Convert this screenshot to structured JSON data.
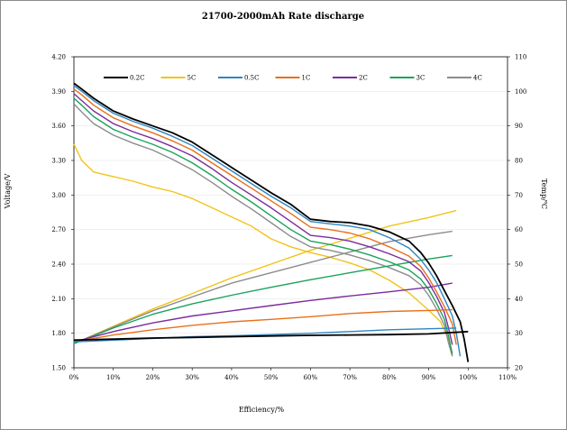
{
  "chart_data": {
    "type": "line",
    "title": "21700-2000mAh Rate discharge",
    "xlabel": "Efficiency/%",
    "ylabel": "Voltage/V",
    "y2label": "Temp/℃",
    "xlim": [
      0,
      110
    ],
    "ylim": [
      1.5,
      4.2
    ],
    "y2lim": [
      20,
      110
    ],
    "xticks": [
      "0%",
      "10%",
      "20%",
      "30%",
      "40%",
      "50%",
      "60%",
      "70%",
      "80%",
      "90%",
      "100%",
      "110%"
    ],
    "yticks": [
      "1.50",
      "1.80",
      "2.10",
      "2.40",
      "2.70",
      "3.00",
      "3.30",
      "3.60",
      "3.90",
      "4.20"
    ],
    "y2ticks": [
      "20",
      "30",
      "40",
      "50",
      "60",
      "70",
      "80",
      "90",
      "100",
      "110"
    ],
    "legend_position": "top",
    "series": [
      {
        "name": "0.2C",
        "color": "#000000",
        "voltage": [
          [
            0,
            3.97
          ],
          [
            2,
            3.92
          ],
          [
            5,
            3.84
          ],
          [
            10,
            3.73
          ],
          [
            15,
            3.66
          ],
          [
            20,
            3.6
          ],
          [
            25,
            3.54
          ],
          [
            30,
            3.46
          ],
          [
            35,
            3.35
          ],
          [
            40,
            3.24
          ],
          [
            45,
            3.13
          ],
          [
            50,
            3.02
          ],
          [
            55,
            2.92
          ],
          [
            60,
            2.79
          ],
          [
            65,
            2.77
          ],
          [
            70,
            2.76
          ],
          [
            75,
            2.73
          ],
          [
            80,
            2.68
          ],
          [
            85,
            2.6
          ],
          [
            88,
            2.5
          ],
          [
            90,
            2.41
          ],
          [
            92,
            2.3
          ],
          [
            94,
            2.17
          ],
          [
            96,
            2.04
          ],
          [
            98,
            1.9
          ],
          [
            99,
            1.75
          ],
          [
            100,
            1.55
          ]
        ],
        "temp": [
          [
            0,
            28
          ],
          [
            10,
            28.3
          ],
          [
            20,
            28.6
          ],
          [
            30,
            28.8
          ],
          [
            40,
            29
          ],
          [
            50,
            29.2
          ],
          [
            60,
            29.4
          ],
          [
            70,
            29.5
          ],
          [
            80,
            29.6
          ],
          [
            90,
            29.8
          ],
          [
            100,
            30.5
          ]
        ]
      },
      {
        "name": "5C",
        "color": "#f2c318",
        "voltage": [
          [
            0,
            3.44
          ],
          [
            2,
            3.3
          ],
          [
            5,
            3.2
          ],
          [
            10,
            3.16
          ],
          [
            15,
            3.12
          ],
          [
            20,
            3.07
          ],
          [
            25,
            3.03
          ],
          [
            30,
            2.97
          ],
          [
            35,
            2.89
          ],
          [
            40,
            2.81
          ],
          [
            45,
            2.73
          ],
          [
            50,
            2.62
          ],
          [
            55,
            2.55
          ],
          [
            60,
            2.5
          ],
          [
            65,
            2.46
          ],
          [
            70,
            2.41
          ],
          [
            75,
            2.35
          ],
          [
            80,
            2.26
          ],
          [
            85,
            2.15
          ],
          [
            90,
            2.0
          ],
          [
            93,
            1.9
          ],
          [
            95,
            1.75
          ],
          [
            96,
            1.6
          ]
        ],
        "temp": [
          [
            0,
            27
          ],
          [
            10,
            32
          ],
          [
            20,
            37
          ],
          [
            30,
            41.5
          ],
          [
            40,
            46
          ],
          [
            50,
            50
          ],
          [
            60,
            54
          ],
          [
            70,
            57.5
          ],
          [
            80,
            61
          ],
          [
            90,
            63.5
          ],
          [
            97,
            65.5
          ]
        ]
      },
      {
        "name": "0.5C",
        "color": "#2e86c1",
        "voltage": [
          [
            0,
            3.95
          ],
          [
            2,
            3.9
          ],
          [
            5,
            3.82
          ],
          [
            10,
            3.71
          ],
          [
            15,
            3.64
          ],
          [
            20,
            3.58
          ],
          [
            25,
            3.51
          ],
          [
            30,
            3.43
          ],
          [
            35,
            3.32
          ],
          [
            40,
            3.21
          ],
          [
            45,
            3.1
          ],
          [
            50,
            2.99
          ],
          [
            55,
            2.89
          ],
          [
            60,
            2.77
          ],
          [
            65,
            2.75
          ],
          [
            70,
            2.73
          ],
          [
            75,
            2.7
          ],
          [
            80,
            2.63
          ],
          [
            85,
            2.54
          ],
          [
            88,
            2.44
          ],
          [
            90,
            2.35
          ],
          [
            92,
            2.24
          ],
          [
            94,
            2.1
          ],
          [
            96,
            1.95
          ],
          [
            97,
            1.8
          ],
          [
            98,
            1.6
          ]
        ],
        "temp": [
          [
            0,
            27.5
          ],
          [
            10,
            28
          ],
          [
            20,
            28.5
          ],
          [
            30,
            29
          ],
          [
            40,
            29.3
          ],
          [
            50,
            29.6
          ],
          [
            60,
            30
          ],
          [
            70,
            30.5
          ],
          [
            80,
            31
          ],
          [
            90,
            31.3
          ],
          [
            97,
            31.5
          ]
        ]
      },
      {
        "name": "1C",
        "color": "#e8701a",
        "voltage": [
          [
            0,
            3.92
          ],
          [
            2,
            3.87
          ],
          [
            5,
            3.78
          ],
          [
            10,
            3.67
          ],
          [
            15,
            3.6
          ],
          [
            20,
            3.54
          ],
          [
            25,
            3.47
          ],
          [
            30,
            3.39
          ],
          [
            35,
            3.28
          ],
          [
            40,
            3.17
          ],
          [
            45,
            3.06
          ],
          [
            50,
            2.95
          ],
          [
            55,
            2.84
          ],
          [
            60,
            2.72
          ],
          [
            65,
            2.7
          ],
          [
            70,
            2.67
          ],
          [
            75,
            2.62
          ],
          [
            80,
            2.55
          ],
          [
            85,
            2.47
          ],
          [
            88,
            2.38
          ],
          [
            90,
            2.28
          ],
          [
            92,
            2.16
          ],
          [
            94,
            2.03
          ],
          [
            96,
            1.88
          ],
          [
            97,
            1.7
          ]
        ],
        "temp": [
          [
            0,
            27.5
          ],
          [
            10,
            29.5
          ],
          [
            20,
            31
          ],
          [
            30,
            32.3
          ],
          [
            40,
            33.3
          ],
          [
            50,
            34
          ],
          [
            60,
            34.8
          ],
          [
            70,
            35.7
          ],
          [
            80,
            36.3
          ],
          [
            90,
            36.6
          ],
          [
            96,
            36.8
          ]
        ]
      },
      {
        "name": "2C",
        "color": "#7b2c9e",
        "voltage": [
          [
            0,
            3.88
          ],
          [
            2,
            3.82
          ],
          [
            5,
            3.73
          ],
          [
            10,
            3.62
          ],
          [
            15,
            3.55
          ],
          [
            20,
            3.49
          ],
          [
            25,
            3.42
          ],
          [
            30,
            3.34
          ],
          [
            35,
            3.23
          ],
          [
            40,
            3.11
          ],
          [
            45,
            3.0
          ],
          [
            50,
            2.89
          ],
          [
            55,
            2.77
          ],
          [
            60,
            2.65
          ],
          [
            65,
            2.63
          ],
          [
            70,
            2.6
          ],
          [
            75,
            2.55
          ],
          [
            80,
            2.49
          ],
          [
            85,
            2.42
          ],
          [
            88,
            2.34
          ],
          [
            90,
            2.24
          ],
          [
            92,
            2.12
          ],
          [
            94,
            1.98
          ],
          [
            95,
            1.85
          ],
          [
            96,
            1.7
          ]
        ],
        "temp": [
          [
            0,
            27.5
          ],
          [
            10,
            30.5
          ],
          [
            20,
            33
          ],
          [
            30,
            35
          ],
          [
            40,
            36.5
          ],
          [
            50,
            38
          ],
          [
            60,
            39.5
          ],
          [
            70,
            40.8
          ],
          [
            80,
            42
          ],
          [
            90,
            43.3
          ],
          [
            96,
            44.5
          ]
        ]
      },
      {
        "name": "3C",
        "color": "#1aa35a",
        "voltage": [
          [
            0,
            3.84
          ],
          [
            2,
            3.78
          ],
          [
            5,
            3.68
          ],
          [
            10,
            3.57
          ],
          [
            15,
            3.5
          ],
          [
            20,
            3.44
          ],
          [
            25,
            3.37
          ],
          [
            30,
            3.28
          ],
          [
            35,
            3.17
          ],
          [
            40,
            3.05
          ],
          [
            45,
            2.94
          ],
          [
            50,
            2.82
          ],
          [
            55,
            2.7
          ],
          [
            60,
            2.6
          ],
          [
            65,
            2.57
          ],
          [
            70,
            2.53
          ],
          [
            75,
            2.48
          ],
          [
            80,
            2.42
          ],
          [
            85,
            2.35
          ],
          [
            88,
            2.27
          ],
          [
            90,
            2.18
          ],
          [
            92,
            2.06
          ],
          [
            94,
            1.92
          ],
          [
            95,
            1.78
          ],
          [
            96,
            1.62
          ]
        ],
        "temp": [
          [
            0,
            27
          ],
          [
            10,
            31.5
          ],
          [
            20,
            35.5
          ],
          [
            30,
            38.5
          ],
          [
            40,
            41
          ],
          [
            50,
            43.3
          ],
          [
            60,
            45.5
          ],
          [
            70,
            47.5
          ],
          [
            80,
            49.5
          ],
          [
            90,
            51.5
          ],
          [
            96,
            52.5
          ]
        ]
      },
      {
        "name": "4C",
        "color": "#8c8c8c",
        "voltage": [
          [
            0,
            3.79
          ],
          [
            2,
            3.72
          ],
          [
            5,
            3.62
          ],
          [
            10,
            3.52
          ],
          [
            15,
            3.45
          ],
          [
            20,
            3.39
          ],
          [
            25,
            3.31
          ],
          [
            30,
            3.22
          ],
          [
            35,
            3.11
          ],
          [
            40,
            2.99
          ],
          [
            45,
            2.88
          ],
          [
            50,
            2.76
          ],
          [
            55,
            2.64
          ],
          [
            60,
            2.55
          ],
          [
            65,
            2.52
          ],
          [
            70,
            2.48
          ],
          [
            75,
            2.43
          ],
          [
            80,
            2.37
          ],
          [
            85,
            2.3
          ],
          [
            88,
            2.22
          ],
          [
            90,
            2.13
          ],
          [
            92,
            2.01
          ],
          [
            94,
            1.87
          ],
          [
            95,
            1.72
          ],
          [
            96,
            1.6
          ]
        ],
        "temp": [
          [
            0,
            27
          ],
          [
            10,
            31.8
          ],
          [
            20,
            36.5
          ],
          [
            30,
            40.5
          ],
          [
            40,
            44.5
          ],
          [
            50,
            47.5
          ],
          [
            60,
            50.5
          ],
          [
            70,
            53.5
          ],
          [
            80,
            56.5
          ],
          [
            90,
            58.5
          ],
          [
            96,
            59.5
          ]
        ]
      }
    ]
  }
}
